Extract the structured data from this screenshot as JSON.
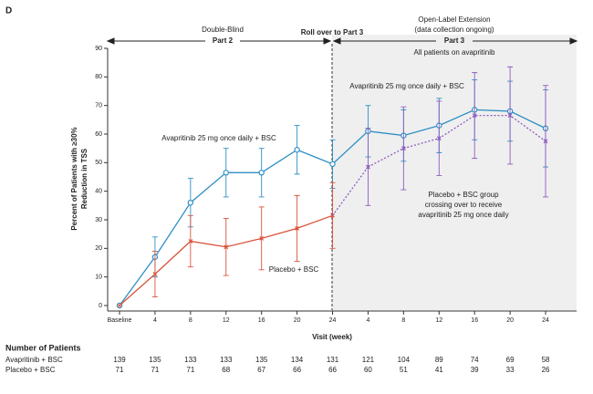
{
  "chart_data": {
    "type": "line",
    "panel_label": "D",
    "header": {
      "left_top": "Double-Blind",
      "left_bottom": "Part 2",
      "middle": "Roll over to Part 3",
      "right_top": "Open-Label Extension",
      "right_mid": "(data collection ongoing)",
      "right_bottom": "Part 3"
    },
    "annotations": [
      "All patients on avapritinib",
      "Avapritinib 25 mg once daily + BSC",
      "Avapritinib 25 mg once daily + BSC",
      "Placebo + BSC",
      "Placebo + BSC group",
      "crossing over to receive",
      "avapritinib 25 mg once daily"
    ],
    "ylabel": [
      "Percent of Patients with ≥30%",
      "Reduction in TSS"
    ],
    "xlabel": "Visit (week)",
    "categories": [
      "Baseline",
      "4",
      "8",
      "12",
      "16",
      "20",
      "24",
      "4",
      "8",
      "12",
      "16",
      "20",
      "24"
    ],
    "ylim": [
      0,
      90
    ],
    "yticks": [
      0,
      10,
      20,
      30,
      40,
      50,
      60,
      70,
      80,
      90
    ],
    "series": [
      {
        "name": "Avapritinib + BSC",
        "color": "#2f8fc4",
        "values": [
          0,
          17,
          36,
          46.5,
          46.5,
          54.5,
          49.5,
          61,
          59.5,
          63,
          68.5,
          68,
          62
        ],
        "errors": [
          null,
          7,
          8.5,
          8.5,
          8.5,
          8.5,
          8.5,
          9,
          9,
          9.5,
          10.5,
          10.5,
          13.5
        ]
      },
      {
        "name": "Placebo + BSC",
        "color": "#d9533c",
        "values": [
          0,
          11,
          22.5,
          20.5,
          23.5,
          27,
          31.5,
          null,
          null,
          null,
          null,
          null,
          null
        ],
        "errors": [
          null,
          8,
          9,
          10,
          11,
          11.5,
          11.5,
          null,
          null,
          null,
          null,
          null,
          null
        ]
      },
      {
        "name": "Placebo crossover",
        "color": "#8e5bbf",
        "dashed": true,
        "values": [
          null,
          null,
          null,
          null,
          null,
          null,
          null,
          48.5,
          55,
          58.5,
          66.5,
          66.5,
          57.5
        ],
        "errors": [
          null,
          null,
          null,
          null,
          null,
          null,
          null,
          13.5,
          14.5,
          13,
          15,
          17,
          19.5
        ]
      }
    ],
    "patients": {
      "title": "Number of Patients",
      "rows": [
        {
          "name": "Avapritinib + BSC",
          "values": [
            139,
            135,
            133,
            133,
            135,
            134,
            131,
            121,
            104,
            89,
            74,
            69,
            58
          ]
        },
        {
          "name": "Placebo + BSC",
          "values": [
            71,
            71,
            71,
            68,
            67,
            66,
            66,
            60,
            51,
            41,
            39,
            33,
            26
          ]
        }
      ]
    }
  }
}
